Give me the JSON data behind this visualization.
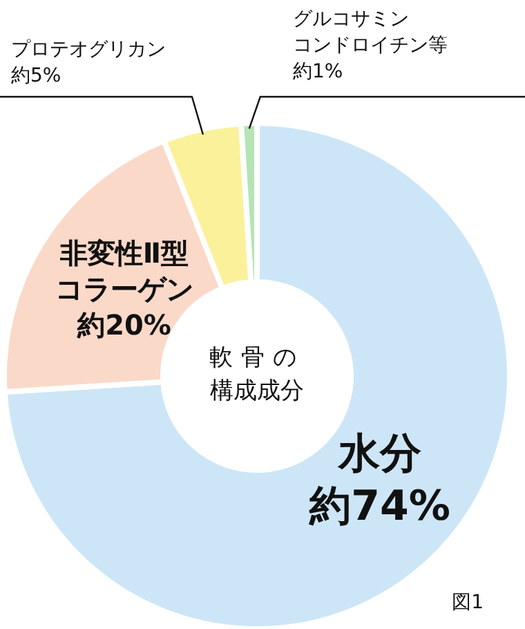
{
  "chart_data": {
    "type": "donut",
    "title": "軟骨の構成成分",
    "categories": [
      "水分",
      "非変性Ⅱ型コラーゲン",
      "プロテオグリカン",
      "グルコサミンコンドロイチン等"
    ],
    "values": [
      74,
      20,
      5,
      1
    ],
    "value_labels": [
      "約74%",
      "約20%",
      "約5%",
      "約1%"
    ],
    "colors": [
      "#cde6f7",
      "#fbd9c8",
      "#fbf19a",
      "#b5e4b5"
    ],
    "annotations": [
      "図1"
    ]
  }
}
